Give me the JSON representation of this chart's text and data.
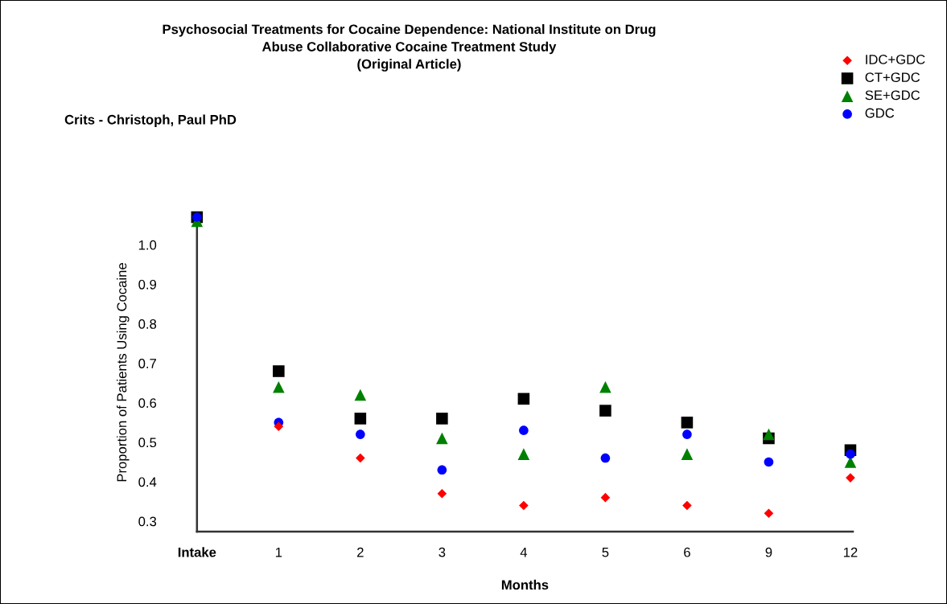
{
  "chart_data": {
    "type": "scatter",
    "title": "Psychosocial Treatments for Cocaine Dependence: National Institute on Drug\nAbuse Collaborative Cocaine Treatment Study\n(Original Article)",
    "subtitle": "Crits - Christoph, Paul PhD",
    "xlabel": "Months",
    "ylabel": "Proportion of Patients Using Cocaine",
    "categories": [
      "Intake",
      "1",
      "2",
      "3",
      "4",
      "5",
      "6",
      "9",
      "12"
    ],
    "series": [
      {
        "name": "IDC+GDC",
        "color": "#ff0000",
        "marker": "diamond",
        "values": [
          null,
          0.54,
          0.46,
          0.37,
          0.34,
          0.36,
          0.34,
          0.32,
          0.41
        ]
      },
      {
        "name": "CT+GDC",
        "color": "#000000",
        "marker": "square",
        "values": [
          1.07,
          0.68,
          0.56,
          0.56,
          0.61,
          0.58,
          0.55,
          0.51,
          0.48
        ]
      },
      {
        "name": "SE+GDC",
        "color": "#008000",
        "marker": "triangle",
        "values": [
          1.06,
          0.64,
          0.62,
          0.51,
          0.47,
          0.64,
          0.47,
          0.52,
          0.45
        ]
      },
      {
        "name": "GDC",
        "color": "#0000ff",
        "marker": "circle",
        "values": [
          1.07,
          0.55,
          0.52,
          0.43,
          0.53,
          0.46,
          0.52,
          0.45,
          0.47
        ]
      }
    ],
    "ylim": [
      0.274,
      1.08
    ],
    "yticks": [
      0.3,
      0.4,
      0.5,
      0.6,
      0.7,
      0.8,
      0.9,
      {
        "value": 1.0,
        "label": "1.0"
      }
    ],
    "grid": false,
    "legend": "top right"
  }
}
